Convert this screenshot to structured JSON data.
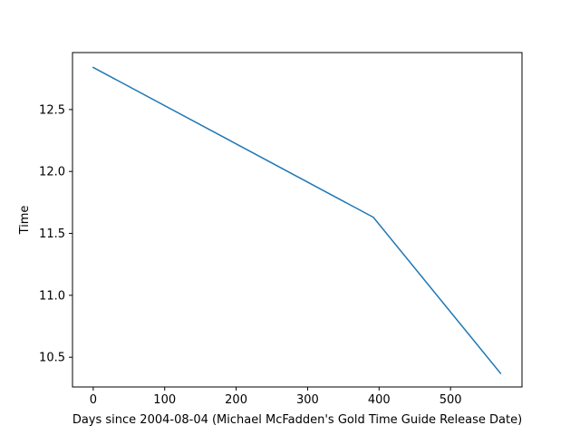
{
  "chart_data": {
    "type": "line",
    "title": "",
    "xlabel": "Days since 2004-08-04 (Michael McFadden's Gold Time Guide Release Date)",
    "ylabel": "Time",
    "xlim": [
      -29,
      600
    ],
    "ylim": [
      10.26,
      12.96
    ],
    "x_ticks": [
      0,
      100,
      200,
      300,
      400,
      500
    ],
    "y_ticks": [
      10.5,
      11.0,
      11.5,
      12.0,
      12.5
    ],
    "y_tick_labels": [
      "10.5",
      "11.0",
      "11.5",
      "12.0",
      "12.5"
    ],
    "grid": false,
    "legend": "none",
    "series": [
      {
        "color": "#1f77b4",
        "x": [
          0,
          392,
          570
        ],
        "y": [
          12.84,
          11.63,
          10.37
        ]
      }
    ]
  }
}
